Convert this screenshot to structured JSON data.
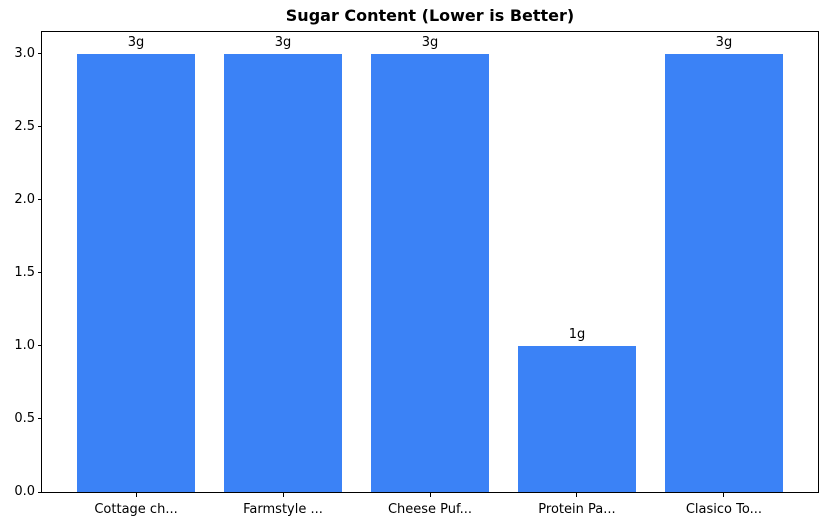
{
  "chart_data": {
    "type": "bar",
    "title": "Sugar Content (Lower is Better)",
    "categories": [
      "Cottage ch...",
      "Farmstyle ...",
      "Cheese Puf...",
      "Protein Pa...",
      "Clasico To..."
    ],
    "values": [
      3,
      3,
      3,
      1,
      3
    ],
    "bar_labels": [
      "3g",
      "3g",
      "3g",
      "1g",
      "3g"
    ],
    "xlabel": "",
    "ylabel": "",
    "ylim": [
      0,
      3.15
    ],
    "x_range": [
      -0.64,
      4.64
    ],
    "yticks": [
      0.0,
      0.5,
      1.0,
      1.5,
      2.0,
      2.5,
      3.0
    ],
    "ytick_labels": [
      "0.0",
      "0.5",
      "1.0",
      "1.5",
      "2.0",
      "2.5",
      "3.0"
    ],
    "bar_width_units": 0.8,
    "bar_color": "#3b82f6",
    "axis_color": "#000000",
    "text_color": "#000000",
    "background_color": "#ffffff",
    "grid": false,
    "legend": null
  }
}
